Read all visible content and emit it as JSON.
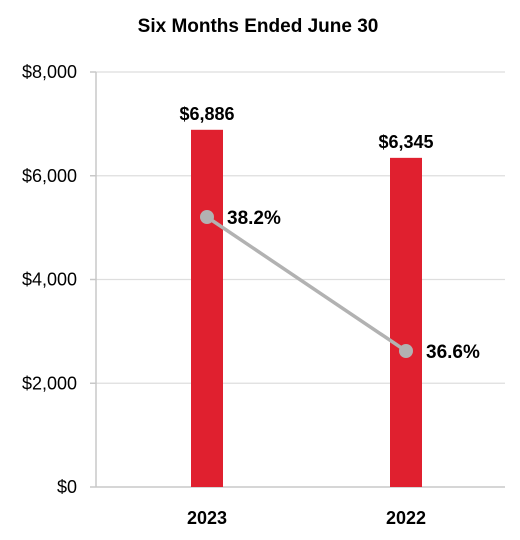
{
  "chart_data": {
    "type": "bar",
    "title": "Six Months Ended June 30",
    "xlabel": "",
    "ylabel": "",
    "categories": [
      "2023",
      "2022"
    ],
    "ylim": [
      0,
      8000
    ],
    "yticks": [
      0,
      2000,
      4000,
      6000,
      8000
    ],
    "ytick_labels": [
      "$0",
      "$2,000",
      "$4,000",
      "$6,000",
      "$8,000"
    ],
    "grid": true,
    "series": [
      {
        "type": "bar",
        "values": [
          6886,
          6345
        ],
        "labels": [
          "$6,886",
          "$6,345"
        ],
        "color": "#e0202f"
      },
      {
        "type": "line",
        "values": [
          38.2,
          36.6
        ],
        "labels": [
          "38.2%",
          "36.6%"
        ],
        "color": "#b2b2b2"
      }
    ]
  }
}
